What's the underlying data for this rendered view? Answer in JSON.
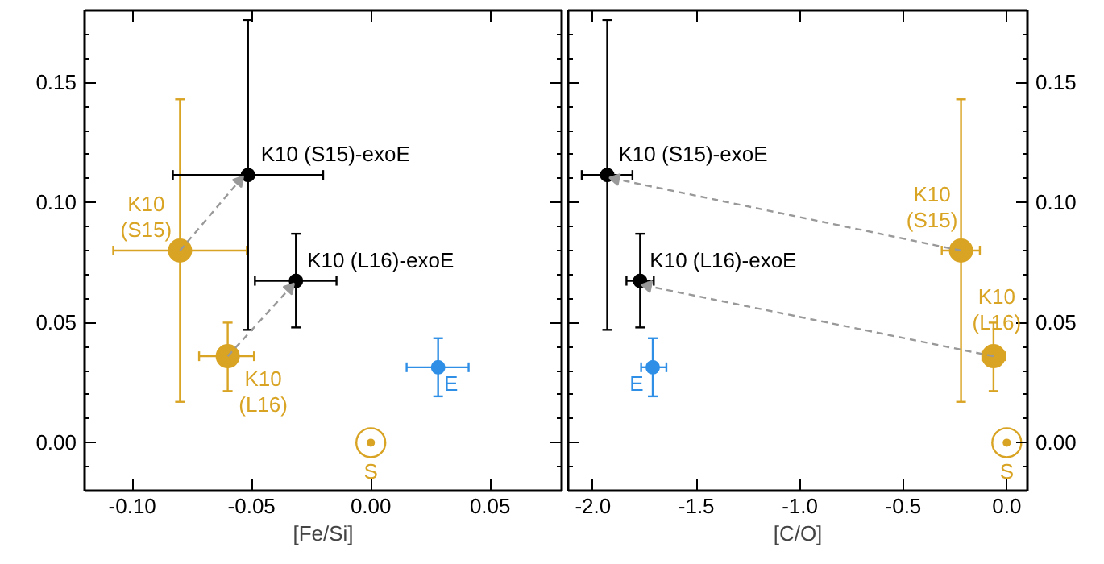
{
  "chart_data": [
    {
      "type": "scatter",
      "xlabel": "[Fe/Si]",
      "xlim": [
        -0.12,
        0.08
      ],
      "ylim": [
        -0.02,
        0.18
      ],
      "marker": "circle",
      "xticks": [
        {
          "value": -0.1,
          "label": "-0.10"
        },
        {
          "value": -0.05,
          "label": "-0.05"
        },
        {
          "value": 0,
          "label": "0.00"
        },
        {
          "value": 0.05,
          "label": "0.05"
        }
      ],
      "yticks": [
        {
          "value": 0,
          "label": "0.00"
        },
        {
          "value": 0.05,
          "label": "0.05"
        },
        {
          "value": 0.1,
          "label": "0.10"
        },
        {
          "value": 0.15,
          "label": "0.15"
        }
      ],
      "series": [
        {
          "name": "K10\n(S15)",
          "color": "#d9a424",
          "x": [
            -0.08
          ],
          "values": [
            0.08
          ],
          "errors": [
            [
              0.017,
              0.143
            ]
          ],
          "xerrors": [
            [
              -0.108,
              -0.052
            ]
          ]
        },
        {
          "name": "K10\n(L16)",
          "color": "#d9a424",
          "x": [
            -0.06
          ],
          "values": [
            0.036
          ],
          "errors": [
            [
              0.0215,
              0.05
            ]
          ],
          "xerrors": [
            [
              -0.072,
              -0.049
            ]
          ]
        },
        {
          "name": "K10 (S15)-exoE",
          "color": "#000000",
          "x": [
            -0.0515
          ],
          "values": [
            0.1115
          ],
          "errors": [
            [
              0.047,
              0.176
            ]
          ],
          "xerrors": [
            [
              -0.083,
              -0.02
            ]
          ]
        },
        {
          "name": "K10 (L16)-exoE",
          "color": "#000000",
          "x": [
            -0.0314
          ],
          "values": [
            0.0674
          ],
          "errors": [
            [
              0.048,
              0.087
            ]
          ],
          "xerrors": [
            [
              -0.0486,
              -0.0144
            ]
          ]
        },
        {
          "name": "E",
          "color": "#2f8fe6",
          "x": [
            0.0282
          ],
          "values": [
            0.0314
          ],
          "errors": [
            [
              0.0193,
              0.0435
            ]
          ],
          "xerrors": [
            [
              0.015,
              0.041
            ]
          ]
        },
        {
          "name": "S",
          "color": "#d9a424",
          "x": [
            0
          ],
          "values": [
            0
          ]
        },
        {
          "type": "line",
          "line_style": "dashed",
          "marker": "triangle",
          "color": "#999999",
          "x": [
            -0.08,
            -0.0552
          ],
          "values": [
            0.08,
            0.109
          ]
        },
        {
          "type": "line",
          "line_style": "dashed",
          "marker": "triangle",
          "color": "#999999",
          "x": [
            -0.06,
            -0.034
          ],
          "values": [
            0.036,
            0.0643
          ]
        }
      ]
    },
    {
      "type": "scatter",
      "xlabel": "[C/O]",
      "xlim": [
        -2.12,
        0.1
      ],
      "ylim": [
        -0.02,
        0.18
      ],
      "marker": "circle",
      "xticks": [
        {
          "value": -2,
          "label": "-2.0"
        },
        {
          "value": -1.5,
          "label": "-1.5"
        },
        {
          "value": -1,
          "label": "-1.0"
        },
        {
          "value": -0.5,
          "label": "-0.5"
        },
        {
          "value": 0,
          "label": "0.0"
        }
      ],
      "y2lim": [
        -0.02,
        0.18
      ],
      "y2ticks": [
        {
          "value": 0,
          "label": "0.00"
        },
        {
          "value": 0.05,
          "label": "0.05"
        },
        {
          "value": 0.1,
          "label": "0.10"
        },
        {
          "value": 0.15,
          "label": "0.15"
        }
      ],
      "series": [
        {
          "name": "K10\n(S15)",
          "color": "#d9a424",
          "x": [
            -0.221
          ],
          "values": [
            0.08
          ],
          "errors": [
            [
              0.017,
              0.143
            ]
          ],
          "xerrors": [
            [
              -0.314,
              -0.13
            ]
          ]
        },
        {
          "name": "K10\n(L16)",
          "color": "#d9a424",
          "x": [
            -0.064
          ],
          "values": [
            0.036
          ],
          "errors": [
            [
              0.0215,
              0.05
            ]
          ],
          "xerrors": [
            [
              -0.118,
              -0.007
            ]
          ]
        },
        {
          "name": "K10 (S15)-exoE",
          "color": "#000000",
          "x": [
            -1.931
          ],
          "values": [
            0.1115
          ],
          "errors": [
            [
              0.047,
              0.176
            ]
          ],
          "xerrors": [
            [
              -2.054,
              -1.809
            ]
          ]
        },
        {
          "name": "K10 (L16)-exoE",
          "color": "#000000",
          "x": [
            -1.772
          ],
          "values": [
            0.0674
          ],
          "errors": [
            [
              0.048,
              0.087
            ]
          ],
          "xerrors": [
            [
              -1.838,
              -1.706
            ]
          ]
        },
        {
          "name": "E",
          "color": "#2f8fe6",
          "x": [
            -1.711
          ],
          "values": [
            0.0314
          ],
          "errors": [
            [
              0.0193,
              0.0435
            ]
          ],
          "xerrors": [
            [
              -1.767,
              -1.645
            ]
          ]
        },
        {
          "name": "S",
          "color": "#d9a424",
          "x": [
            0
          ],
          "values": [
            0
          ]
        },
        {
          "type": "line",
          "line_style": "dashed",
          "marker": "triangle",
          "color": "#999999",
          "x": [
            -0.221,
            -1.89
          ],
          "values": [
            0.08,
            0.1098
          ]
        },
        {
          "type": "line",
          "line_style": "dashed",
          "marker": "triangle",
          "color": "#999999",
          "x": [
            -0.064,
            -1.735
          ],
          "values": [
            0.036,
            0.0652
          ]
        }
      ]
    }
  ]
}
